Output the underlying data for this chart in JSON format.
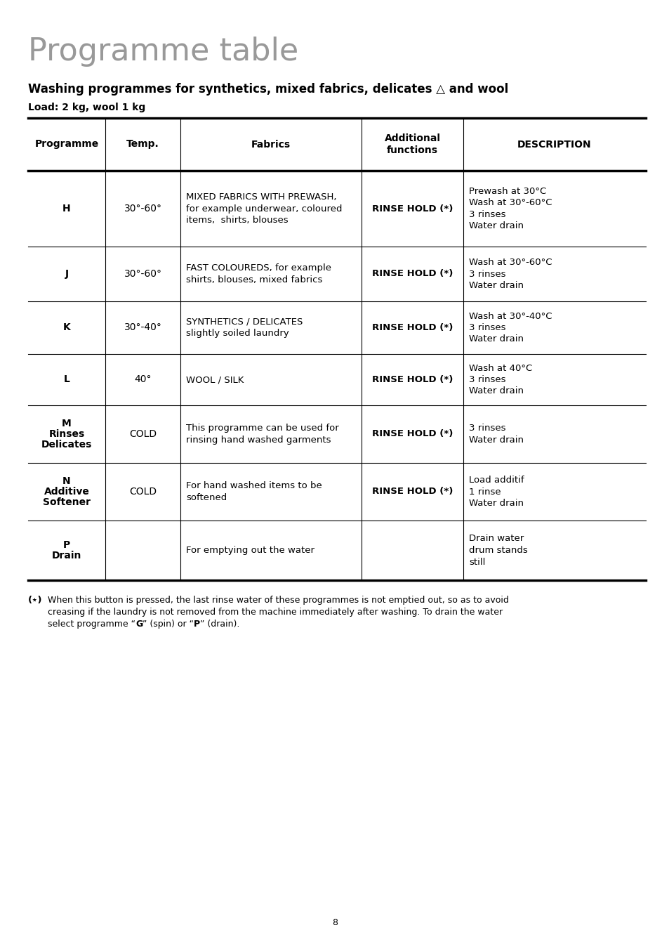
{
  "title": "Programme table",
  "subtitle": "Washing programmes for synthetics, mixed fabrics, delicates △ and wool",
  "load_text": "Load: 2 kg, wool 1 kg",
  "col_headers": [
    "Programme",
    "Temp.",
    "Fabrics",
    "Additional\nfunctions",
    "DESCRIPTION"
  ],
  "rows": [
    {
      "prog": "H",
      "prog_bold": true,
      "prog_extra": "",
      "temp": "30°-60°",
      "fabrics": "MIXED FABRICS WITH PREWASH,\nfor example underwear, coloured\nitems,  shirts, blouses",
      "add_func": "RINSE HOLD (*)",
      "desc": "Prewash at 30°C\nWash at 30°-60°C\n3 rinses\nWater drain"
    },
    {
      "prog": "J",
      "prog_bold": true,
      "prog_extra": "",
      "temp": "30°-60°",
      "fabrics": "FAST COLOUREDS, for example\nshirts, blouses, mixed fabrics",
      "add_func": "RINSE HOLD (*)",
      "desc": "Wash at 30°-60°C\n3 rinses\nWater drain"
    },
    {
      "prog": "K",
      "prog_bold": true,
      "prog_extra": "",
      "temp": "30°-40°",
      "fabrics": "SYNTHETICS / DELICATES\nslightly soiled laundry",
      "add_func": "RINSE HOLD (*)",
      "desc": "Wash at 30°-40°C\n3 rinses\nWater drain"
    },
    {
      "prog": "L",
      "prog_bold": true,
      "prog_extra": "",
      "temp": "40°",
      "fabrics": "WOOL / SILK",
      "add_func": "RINSE HOLD (*)",
      "desc": "Wash at 40°C\n3 rinses\nWater drain"
    },
    {
      "prog": "M",
      "prog_bold": true,
      "prog_extra": "Rinses\nDelicates",
      "temp": "COLD",
      "fabrics": "This programme can be used for\nrinsing hand washed garments",
      "add_func": "RINSE HOLD (*)",
      "desc": "3 rinses\nWater drain"
    },
    {
      "prog": "N",
      "prog_bold": true,
      "prog_extra": "Additive\nSoftener",
      "temp": "COLD",
      "fabrics": "For hand washed items to be\nsoftened",
      "add_func": "RINSE HOLD (*)",
      "desc": "Load additif\n1 rinse\nWater drain"
    },
    {
      "prog": "P",
      "prog_bold": true,
      "prog_extra": "Drain",
      "temp": "",
      "fabrics": "For emptying out the water",
      "add_func": "",
      "desc": "Drain water\ndrum stands\nstill"
    }
  ],
  "page_number": "8",
  "bg_color": "#ffffff",
  "text_color": "#000000",
  "title_color": "#999999"
}
